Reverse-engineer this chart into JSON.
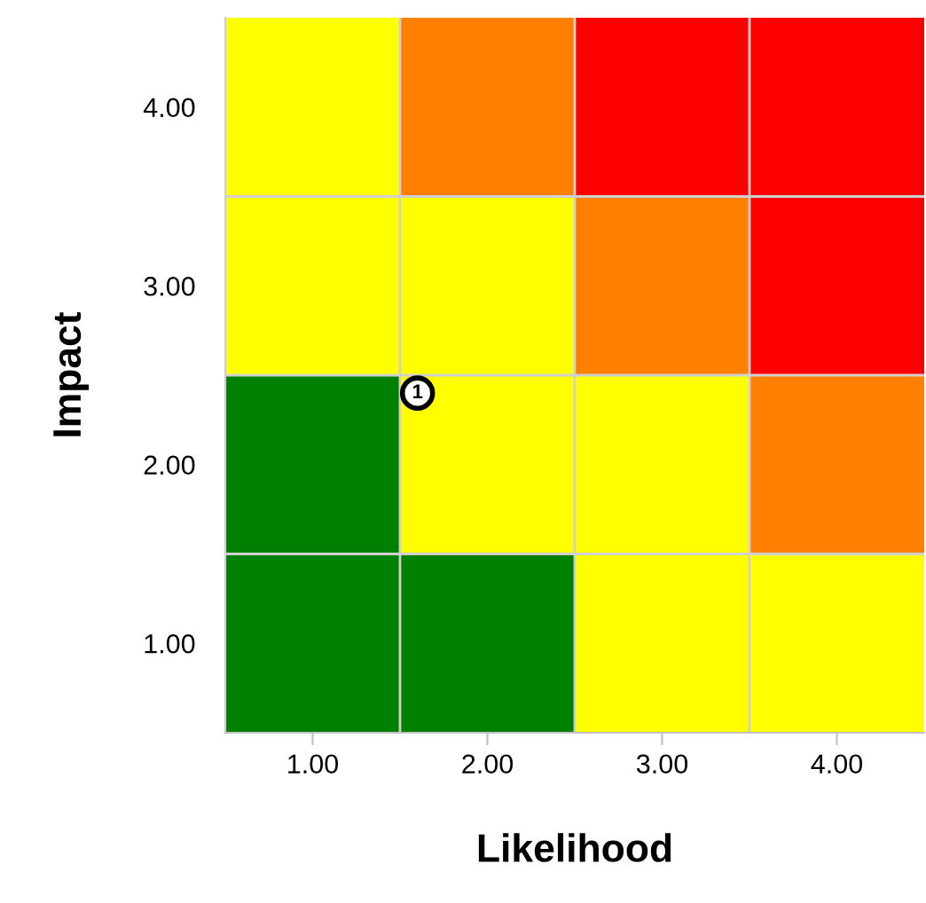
{
  "chart_data": {
    "type": "scatter",
    "xlabel": "Likelihood",
    "ylabel": "Impact",
    "xlim": [
      0.5,
      4.5
    ],
    "ylim": [
      0.5,
      4.5
    ],
    "xticks": [
      {
        "value": 1,
        "label": "1.00"
      },
      {
        "value": 2,
        "label": "2.00"
      },
      {
        "value": 3,
        "label": "3.00"
      },
      {
        "value": 4,
        "label": "4.00"
      }
    ],
    "yticks": [
      {
        "value": 1,
        "label": "1.00"
      },
      {
        "value": 2,
        "label": "2.00"
      },
      {
        "value": 3,
        "label": "3.00"
      },
      {
        "value": 4,
        "label": "4.00"
      }
    ],
    "colors": [
      [
        "#ffff00",
        "#ff8000",
        "#ff0000",
        "#ff0000"
      ],
      [
        "#ffff00",
        "#ffff00",
        "#ff8000",
        "#ff0000"
      ],
      [
        "#008000",
        "#ffff00",
        "#ffff00",
        "#ff8000"
      ],
      [
        "#008000",
        "#008000",
        "#ffff00",
        "#ffff00"
      ]
    ],
    "series": [
      {
        "x": [
          1.6
        ],
        "values": [
          2.4
        ],
        "color": "#ffffff",
        "name": "1"
      }
    ],
    "grid": true
  }
}
